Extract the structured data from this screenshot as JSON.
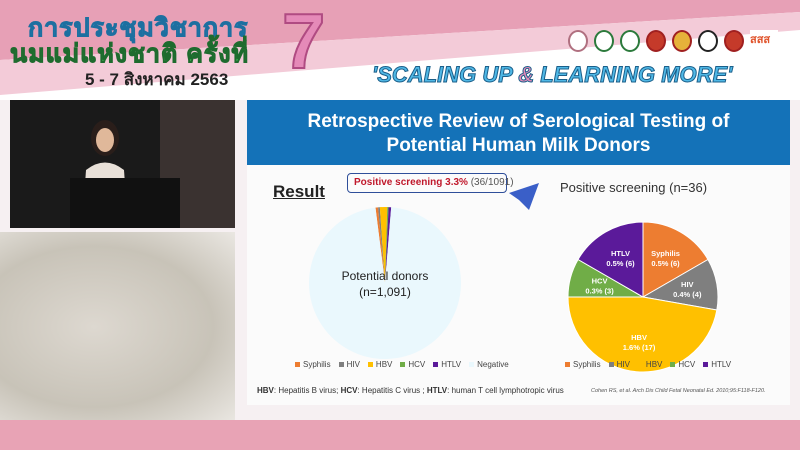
{
  "header": {
    "thai_line1": "การประชุมวิชาการ",
    "thai_line2": "นมแม่แห่งชาติ ครั้งที่",
    "thai_date": "5 - 7 สิงหาคม 2563",
    "edition": "7",
    "slogan_a": "'SCALING UP ",
    "slogan_amp": "&",
    "slogan_b": " LEARNING MORE'",
    "partner_text": "สสส"
  },
  "slide": {
    "title_line1": "Retrospective Review of Serological Testing of",
    "title_line2": "Potential Human Milk Donors",
    "result_label": "Result",
    "callout_bold": "Positive screening 3.3%",
    "callout_rest": " (36/1091)",
    "footnote": [
      {
        "b": "HBV",
        "t": ": Hepatitis B virus; "
      },
      {
        "b": "HCV",
        "t": ": Hepatitis C virus ; "
      },
      {
        "b": "HTLV",
        "t": ": human T cell lymphotropic virus"
      }
    ],
    "citation": "Cohen RS, et al. Arch Dis Child Fetal Neonatal Ed. 2010;95:F118-F120."
  },
  "chart_data": [
    {
      "type": "pie",
      "title": "",
      "center_label_line1": "Potential donors",
      "center_label_line2": "(n=1,091)",
      "categories": [
        "Syphilis",
        "HIV",
        "HBV",
        "HCV",
        "HTLV",
        "Negative"
      ],
      "values": [
        6,
        4,
        17,
        3,
        6,
        1055
      ],
      "colors": [
        "#ed7d31",
        "#7f7f7f",
        "#ffc000",
        "#70ad47",
        "#5b1a9a",
        "#eaf8fd"
      ],
      "legend": "bottom"
    },
    {
      "type": "pie",
      "title": "Positive screening (n=36)",
      "categories": [
        "Syphilis",
        "HIV",
        "HBV",
        "HCV",
        "HTLV"
      ],
      "values": [
        6,
        4,
        17,
        3,
        6
      ],
      "data_labels": [
        "0.5% (6)",
        "0.4% (4)",
        "1.6% (17)",
        "0.3% (3)",
        "0.5% (6)"
      ],
      "colors": [
        "#ed7d31",
        "#7f7f7f",
        "#ffc000",
        "#70ad47",
        "#5b1a9a"
      ],
      "legend": "bottom"
    }
  ]
}
